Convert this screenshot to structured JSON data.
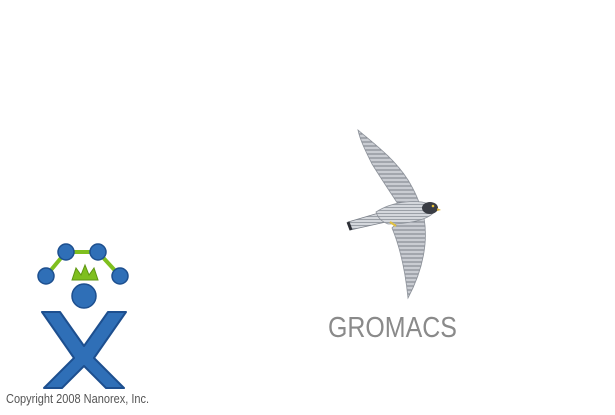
{
  "splash": {
    "product_name": "GROMACS",
    "copyright": "Copyright 2008 Nanorex, Inc.",
    "logo_icon": "nanoengineer-x-figure-icon",
    "image_icon": "peregrine-falcon-icon"
  },
  "colors": {
    "logo_blue": "#2f6fb7",
    "logo_blue_dark": "#1d4f8f",
    "logo_green": "#7fbf1f",
    "product_text": "#8a8a8a",
    "copyright_text": "#555555"
  }
}
